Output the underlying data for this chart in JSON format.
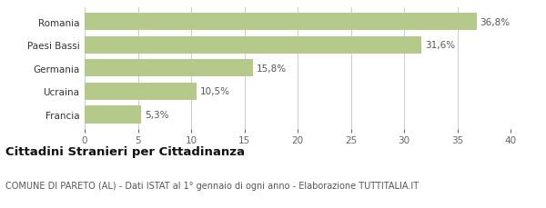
{
  "categories": [
    "Francia",
    "Ucraina",
    "Germania",
    "Paesi Bassi",
    "Romania"
  ],
  "values": [
    5.3,
    10.5,
    15.8,
    31.6,
    36.8
  ],
  "labels": [
    "5,3%",
    "10,5%",
    "15,8%",
    "31,6%",
    "36,8%"
  ],
  "bar_color": "#b5c98a",
  "xlim": [
    0,
    40
  ],
  "xticks": [
    0,
    5,
    10,
    15,
    20,
    25,
    30,
    35,
    40
  ],
  "title_bold": "Cittadini Stranieri per Cittadinanza",
  "subtitle": "COMUNE DI PARETO (AL) - Dati ISTAT al 1° gennaio di ogni anno - Elaborazione TUTTITALIA.IT",
  "background_color": "#ffffff",
  "grid_color": "#cccccc",
  "label_fontsize": 7.5,
  "tick_fontsize": 7.5,
  "title_fontsize": 9.5,
  "subtitle_fontsize": 7.0,
  "ylabel_fontsize": 7.5
}
